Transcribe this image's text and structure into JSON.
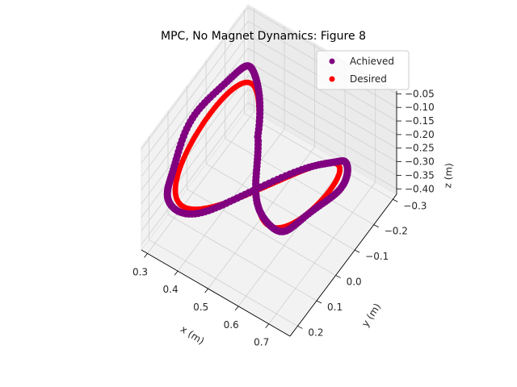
{
  "chart_data": {
    "type": "scatter",
    "projection": "3d",
    "title": "MPC, No Magnet Dynamics: Figure 8",
    "xlabel": "x (m)",
    "ylabel": "y (m)",
    "zlabel": "z (m)",
    "xlim": [
      0.28,
      0.77
    ],
    "ylim": [
      -0.32,
      0.24
    ],
    "zlim": [
      -0.42,
      -0.04
    ],
    "xticks": [
      "0.3",
      "0.4",
      "0.5",
      "0.6",
      "0.7"
    ],
    "yticks": [
      "−0.3",
      "−0.2",
      "−0.1",
      "0.0",
      "0.1",
      "0.2"
    ],
    "zticks": [
      "−0.40",
      "−0.35",
      "−0.30",
      "−0.25",
      "−0.20",
      "−0.15",
      "−0.10",
      "−0.05"
    ],
    "grid": true,
    "legend": "top-right",
    "series": [
      {
        "name": "Achieved",
        "color": "#800080",
        "description": "figure-8 trajectory, slightly noisy",
        "center": {
          "x": 0.5,
          "y": -0.02,
          "z": -0.21
        },
        "x_amplitude": 0.22,
        "y_amplitude": 0.2,
        "z_range": [
          -0.3,
          -0.11
        ]
      },
      {
        "name": "Desired",
        "color": "#ff0000",
        "description": "ideal figure-8 trajectory",
        "center": {
          "x": 0.5,
          "y": -0.02,
          "z": -0.22
        },
        "x_amplitude": 0.2,
        "y_amplitude": 0.18,
        "z_range": [
          -0.3,
          -0.14
        ]
      }
    ]
  }
}
